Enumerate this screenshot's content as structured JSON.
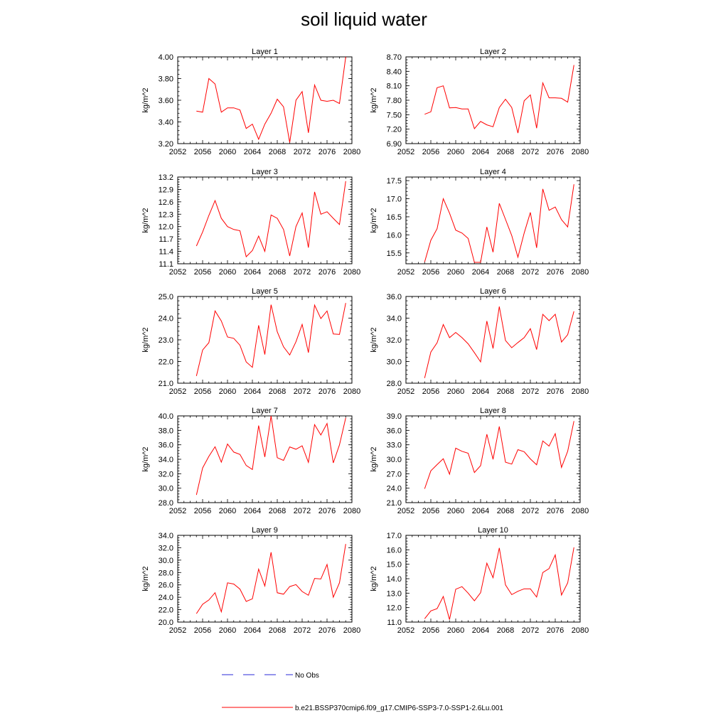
{
  "title": "soil liquid water",
  "legend": {
    "obs_label": "No Obs",
    "obs_color": "#2a2ad8",
    "model_label": "b.e21.BSSP370cmip6.f09_g17.CMIP6-SSP3-7.0-SSP1-2.6Lu.001",
    "model_color": "#ff0000"
  },
  "chart_data": [
    {
      "type": "line",
      "title": "Layer 1",
      "ylabel": "kg/m^2",
      "xlim": [
        2052,
        2080
      ],
      "ylim": [
        3.2,
        4.0
      ],
      "xticks": [
        "2052",
        "2056",
        "2060",
        "2064",
        "2068",
        "2072",
        "2076",
        "2080"
      ],
      "yticks": [
        "3.20",
        "3.40",
        "3.60",
        "3.80",
        "4.00"
      ],
      "series": [
        {
          "x": [
            2055,
            2056,
            2057,
            2058,
            2059,
            2060,
            2061,
            2062,
            2063,
            2064,
            2065,
            2066,
            2067,
            2068,
            2069,
            2070,
            2071,
            2072,
            2073,
            2074,
            2075,
            2076,
            2077,
            2078,
            2079
          ],
          "y": [
            3.5,
            3.49,
            3.8,
            3.75,
            3.49,
            3.53,
            3.53,
            3.51,
            3.34,
            3.38,
            3.24,
            3.38,
            3.48,
            3.61,
            3.54,
            3.21,
            3.6,
            3.68,
            3.3,
            3.74,
            3.6,
            3.59,
            3.6,
            3.57,
            4.0
          ]
        }
      ]
    },
    {
      "type": "line",
      "title": "Layer 2",
      "ylabel": "kg/m^2",
      "xlim": [
        2052,
        2080
      ],
      "ylim": [
        6.9,
        8.7
      ],
      "xticks": [
        "2052",
        "2056",
        "2060",
        "2064",
        "2068",
        "2072",
        "2076",
        "2080"
      ],
      "yticks": [
        "6.90",
        "7.20",
        "7.50",
        "7.80",
        "8.10",
        "8.40",
        "8.70"
      ],
      "series": [
        {
          "x": [
            2055,
            2056,
            2057,
            2058,
            2059,
            2060,
            2061,
            2062,
            2063,
            2064,
            2065,
            2066,
            2067,
            2068,
            2069,
            2070,
            2071,
            2072,
            2073,
            2074,
            2075,
            2076,
            2077,
            2078,
            2079
          ],
          "y": [
            7.51,
            7.56,
            8.06,
            8.1,
            7.64,
            7.65,
            7.62,
            7.62,
            7.21,
            7.36,
            7.29,
            7.25,
            7.65,
            7.82,
            7.65,
            7.12,
            7.79,
            7.91,
            7.22,
            8.16,
            7.85,
            7.85,
            7.84,
            7.76,
            8.53
          ]
        }
      ]
    },
    {
      "type": "line",
      "title": "Layer 3",
      "ylabel": "kg/m^2",
      "xlim": [
        2052,
        2080
      ],
      "ylim": [
        11.1,
        13.2
      ],
      "xticks": [
        "2052",
        "2056",
        "2060",
        "2064",
        "2068",
        "2072",
        "2076",
        "2080"
      ],
      "yticks": [
        "11.1",
        "11.4",
        "11.7",
        "12.0",
        "12.3",
        "12.6",
        "12.9",
        "13.2"
      ],
      "series": [
        {
          "x": [
            2055,
            2056,
            2057,
            2058,
            2059,
            2060,
            2061,
            2062,
            2063,
            2064,
            2065,
            2066,
            2067,
            2068,
            2069,
            2070,
            2071,
            2072,
            2073,
            2074,
            2075,
            2076,
            2077,
            2078,
            2079
          ],
          "y": [
            11.53,
            11.87,
            12.27,
            12.63,
            12.2,
            12.0,
            11.93,
            11.9,
            11.27,
            11.42,
            11.77,
            11.4,
            12.28,
            12.2,
            11.93,
            11.29,
            12.0,
            12.33,
            11.49,
            12.84,
            12.3,
            12.36,
            12.2,
            12.05,
            13.1
          ]
        }
      ]
    },
    {
      "type": "line",
      "title": "Layer 4",
      "ylabel": "kg/m^2",
      "xlim": [
        2052,
        2080
      ],
      "ylim": [
        15.2,
        17.6
      ],
      "xticks": [
        "2052",
        "2056",
        "2060",
        "2064",
        "2068",
        "2072",
        "2076",
        "2080"
      ],
      "yticks": [
        "15.5",
        "16.0",
        "16.5",
        "17.0",
        "17.5"
      ],
      "series": [
        {
          "x": [
            2055,
            2056,
            2057,
            2058,
            2059,
            2060,
            2061,
            2062,
            2063,
            2064,
            2065,
            2066,
            2067,
            2068,
            2069,
            2070,
            2071,
            2072,
            2073,
            2074,
            2075,
            2076,
            2077,
            2078,
            2079
          ],
          "y": [
            15.25,
            15.85,
            16.17,
            17.0,
            16.6,
            16.13,
            16.05,
            15.9,
            15.24,
            15.24,
            16.22,
            15.52,
            16.87,
            16.43,
            15.98,
            15.38,
            16.05,
            16.62,
            15.64,
            17.27,
            16.68,
            16.77,
            16.42,
            16.22,
            17.4
          ]
        }
      ]
    },
    {
      "type": "line",
      "title": "Layer 5",
      "ylabel": "kg/m^2",
      "xlim": [
        2052,
        2080
      ],
      "ylim": [
        21.0,
        25.0
      ],
      "xticks": [
        "2052",
        "2056",
        "2060",
        "2064",
        "2068",
        "2072",
        "2076",
        "2080"
      ],
      "yticks": [
        "21.0",
        "22.0",
        "23.0",
        "24.0",
        "25.0"
      ],
      "series": [
        {
          "x": [
            2055,
            2056,
            2057,
            2058,
            2059,
            2060,
            2061,
            2062,
            2063,
            2064,
            2065,
            2066,
            2067,
            2068,
            2069,
            2070,
            2071,
            2072,
            2073,
            2074,
            2075,
            2076,
            2077,
            2078,
            2079
          ],
          "y": [
            21.33,
            22.53,
            22.87,
            24.33,
            23.87,
            23.13,
            23.07,
            22.75,
            21.98,
            21.73,
            23.67,
            22.32,
            24.62,
            23.37,
            22.68,
            22.3,
            22.91,
            23.71,
            22.41,
            24.6,
            23.98,
            24.33,
            23.27,
            23.25,
            24.7
          ]
        }
      ]
    },
    {
      "type": "line",
      "title": "Layer 6",
      "ylabel": "kg/m^2",
      "xlim": [
        2052,
        2080
      ],
      "ylim": [
        28.0,
        36.0
      ],
      "xticks": [
        "2052",
        "2056",
        "2060",
        "2064",
        "2068",
        "2072",
        "2076",
        "2080"
      ],
      "yticks": [
        "28.0",
        "30.0",
        "32.0",
        "34.0",
        "36.0"
      ],
      "series": [
        {
          "x": [
            2055,
            2056,
            2057,
            2058,
            2059,
            2060,
            2061,
            2062,
            2063,
            2064,
            2065,
            2066,
            2067,
            2068,
            2069,
            2070,
            2071,
            2072,
            2073,
            2074,
            2075,
            2076,
            2077,
            2078,
            2079
          ],
          "y": [
            28.47,
            30.87,
            31.73,
            33.41,
            32.2,
            32.68,
            32.2,
            31.63,
            30.81,
            29.97,
            33.73,
            31.2,
            35.07,
            31.94,
            31.27,
            31.75,
            32.2,
            33.03,
            31.1,
            34.35,
            33.77,
            34.36,
            31.8,
            32.47,
            34.63
          ]
        }
      ]
    },
    {
      "type": "line",
      "title": "Layer 7",
      "ylabel": "kg/m^2",
      "xlim": [
        2052,
        2080
      ],
      "ylim": [
        28.0,
        40.0
      ],
      "xticks": [
        "2052",
        "2056",
        "2060",
        "2064",
        "2068",
        "2072",
        "2076",
        "2080"
      ],
      "yticks": [
        "28.0",
        "30.0",
        "32.0",
        "34.0",
        "36.0",
        "38.0",
        "40.0"
      ],
      "series": [
        {
          "x": [
            2055,
            2056,
            2057,
            2058,
            2059,
            2060,
            2061,
            2062,
            2063,
            2064,
            2065,
            2066,
            2067,
            2068,
            2069,
            2070,
            2071,
            2072,
            2073,
            2074,
            2075,
            2076,
            2077,
            2078,
            2079
          ],
          "y": [
            29.07,
            32.8,
            34.4,
            35.73,
            33.6,
            36.1,
            34.99,
            34.68,
            33.14,
            32.58,
            38.66,
            34.31,
            39.99,
            34.22,
            33.84,
            35.71,
            35.39,
            35.86,
            33.58,
            38.79,
            37.35,
            38.95,
            33.5,
            36.0,
            39.73
          ]
        }
      ]
    },
    {
      "type": "line",
      "title": "Layer 8",
      "ylabel": "kg/m^2",
      "xlim": [
        2052,
        2080
      ],
      "ylim": [
        21.0,
        39.0
      ],
      "xticks": [
        "2052",
        "2056",
        "2060",
        "2064",
        "2068",
        "2072",
        "2076",
        "2080"
      ],
      "yticks": [
        "21.0",
        "24.0",
        "27.0",
        "30.0",
        "33.0",
        "36.0",
        "39.0"
      ],
      "series": [
        {
          "x": [
            2055,
            2056,
            2057,
            2058,
            2059,
            2060,
            2061,
            2062,
            2063,
            2064,
            2065,
            2066,
            2067,
            2068,
            2069,
            2070,
            2071,
            2072,
            2073,
            2074,
            2075,
            2076,
            2077,
            2078,
            2079
          ],
          "y": [
            23.88,
            27.6,
            28.9,
            30.1,
            26.9,
            32.3,
            31.65,
            31.25,
            27.25,
            28.67,
            35.2,
            29.98,
            36.8,
            29.4,
            29.0,
            31.99,
            31.57,
            30.07,
            28.85,
            33.8,
            32.73,
            35.33,
            28.3,
            31.66,
            37.93
          ]
        }
      ]
    },
    {
      "type": "line",
      "title": "Layer 9",
      "ylabel": "kg/m^2",
      "xlim": [
        2052,
        2080
      ],
      "ylim": [
        20.0,
        34.0
      ],
      "xticks": [
        "2052",
        "2056",
        "2060",
        "2064",
        "2068",
        "2072",
        "2076",
        "2080"
      ],
      "yticks": [
        "20.0",
        "22.0",
        "24.0",
        "26.0",
        "28.0",
        "30.0",
        "32.0",
        "34.0"
      ],
      "series": [
        {
          "x": [
            2055,
            2056,
            2057,
            2058,
            2059,
            2060,
            2061,
            2062,
            2063,
            2064,
            2065,
            2066,
            2067,
            2068,
            2069,
            2070,
            2071,
            2072,
            2073,
            2074,
            2075,
            2076,
            2077,
            2078,
            2079
          ],
          "y": [
            21.37,
            22.87,
            23.57,
            24.74,
            21.65,
            26.33,
            26.14,
            25.32,
            23.33,
            23.75,
            28.55,
            25.83,
            31.27,
            24.73,
            24.5,
            25.73,
            26.05,
            24.93,
            24.33,
            27.05,
            26.95,
            29.29,
            24.0,
            26.35,
            32.6
          ]
        }
      ]
    },
    {
      "type": "line",
      "title": "Layer 10",
      "ylabel": "kg/m^2",
      "xlim": [
        2052,
        2080
      ],
      "ylim": [
        11.0,
        17.0
      ],
      "xticks": [
        "2052",
        "2056",
        "2060",
        "2064",
        "2068",
        "2072",
        "2076",
        "2080"
      ],
      "yticks": [
        "11.0",
        "12.0",
        "13.0",
        "14.0",
        "15.0",
        "16.0",
        "17.0"
      ],
      "series": [
        {
          "x": [
            2055,
            2056,
            2057,
            2058,
            2059,
            2060,
            2061,
            2062,
            2063,
            2064,
            2065,
            2066,
            2067,
            2068,
            2069,
            2070,
            2071,
            2072,
            2073,
            2074,
            2075,
            2076,
            2077,
            2078,
            2079
          ],
          "y": [
            11.23,
            11.77,
            11.93,
            12.77,
            11.17,
            13.27,
            13.45,
            13.0,
            12.47,
            13.03,
            15.07,
            14.07,
            16.13,
            13.57,
            12.9,
            13.13,
            13.3,
            13.3,
            12.73,
            14.43,
            14.7,
            15.65,
            12.87,
            13.71,
            16.17
          ]
        }
      ]
    }
  ]
}
